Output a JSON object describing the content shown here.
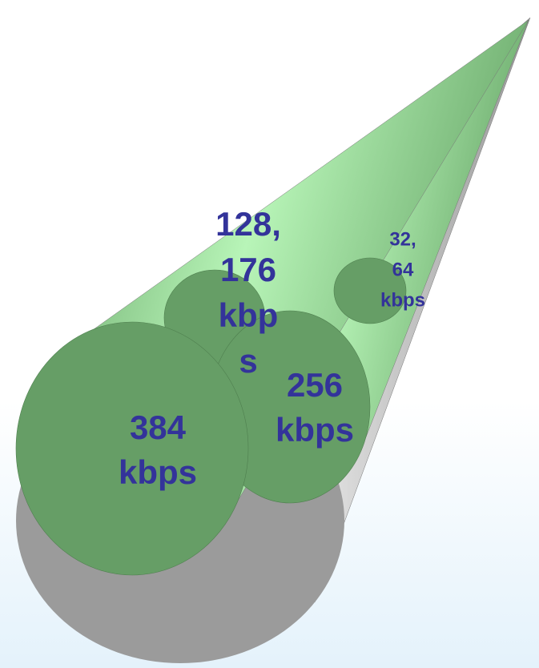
{
  "nodes": [
    {
      "label": [
        "384",
        "kbps"
      ]
    },
    {
      "label": [
        "256",
        "kbps"
      ]
    },
    {
      "label": [
        "128,",
        "176",
        "kbp",
        "s"
      ]
    },
    {
      "label": [
        "32,",
        "64",
        "kbps"
      ]
    }
  ]
}
